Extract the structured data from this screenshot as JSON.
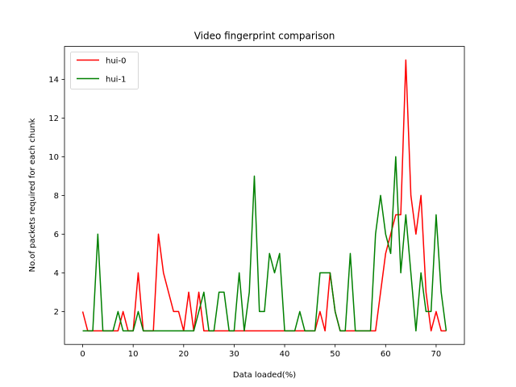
{
  "chart_data": {
    "type": "line",
    "title": "Video fingerprint comparison",
    "xlabel": "Data loaded(%)",
    "ylabel": "No.of packets required for each chunk",
    "xlim": [
      -3.6,
      75.6
    ],
    "ylim": [
      0.3,
      15.7
    ],
    "xticks": [
      0,
      10,
      20,
      30,
      40,
      50,
      60,
      70
    ],
    "yticks": [
      2,
      4,
      6,
      8,
      10,
      12,
      14
    ],
    "legend_position": "upper left",
    "grid": false,
    "x": [
      0,
      1,
      2,
      3,
      4,
      5,
      6,
      7,
      8,
      9,
      10,
      11,
      12,
      13,
      14,
      15,
      16,
      17,
      18,
      19,
      20,
      21,
      22,
      23,
      24,
      25,
      26,
      27,
      28,
      29,
      30,
      31,
      32,
      33,
      34,
      35,
      36,
      37,
      38,
      39,
      40,
      41,
      42,
      43,
      44,
      45,
      46,
      47,
      48,
      49,
      50,
      51,
      52,
      53,
      54,
      55,
      56,
      57,
      58,
      59,
      60,
      61,
      62,
      63,
      64,
      65,
      66,
      67,
      68,
      69,
      70,
      71,
      72
    ],
    "series": [
      {
        "name": "hui-0",
        "color": "#ff0000",
        "values": [
          2,
          1,
          1,
          1,
          1,
          1,
          1,
          1,
          2,
          1,
          1,
          4,
          1,
          1,
          1,
          6,
          4,
          3,
          2,
          2,
          1,
          3,
          1,
          3,
          1,
          1,
          1,
          1,
          1,
          1,
          1,
          1,
          1,
          1,
          1,
          1,
          1,
          1,
          1,
          1,
          1,
          1,
          1,
          1,
          1,
          1,
          1,
          2,
          1,
          4,
          2,
          1,
          1,
          1,
          1,
          1,
          1,
          1,
          1,
          3,
          5,
          6,
          7,
          7,
          15,
          8,
          6,
          8,
          3,
          1,
          2,
          1,
          1
        ]
      },
      {
        "name": "hui-1",
        "color": "#008000",
        "values": [
          1,
          1,
          1,
          6,
          1,
          1,
          1,
          2,
          1,
          1,
          1,
          2,
          1,
          1,
          1,
          1,
          1,
          1,
          1,
          1,
          1,
          1,
          1,
          2,
          3,
          1,
          1,
          3,
          3,
          1,
          1,
          4,
          1,
          3,
          9,
          2,
          2,
          5,
          4,
          5,
          1,
          1,
          1,
          2,
          1,
          1,
          1,
          4,
          4,
          4,
          2,
          1,
          1,
          5,
          1,
          1,
          1,
          1,
          6,
          8,
          6,
          5,
          10,
          4,
          7,
          4,
          1,
          4,
          2,
          2,
          7,
          3,
          1
        ]
      }
    ]
  }
}
